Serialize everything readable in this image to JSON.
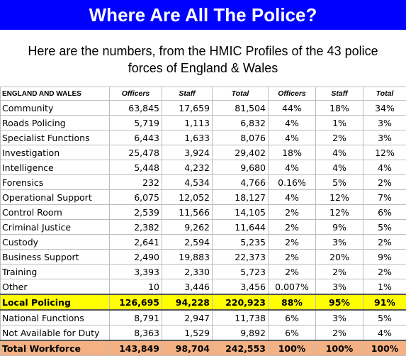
{
  "title": "Where Are All The Police?",
  "subtitle_line1": "Here are the numbers, from the HMIC Profiles of the 43 police",
  "subtitle_line2": "forces of England & Wales",
  "colors": {
    "banner": "#0000ff",
    "highlight": "#ffff00",
    "total": "#f4b183"
  },
  "table": {
    "headers": [
      "ENGLAND AND WALES",
      "Officers",
      "Staff",
      "Total",
      "Officers",
      "Staff",
      "Total"
    ],
    "rows": [
      [
        "Community",
        "63,845",
        "17,659",
        "81,504",
        "44%",
        "18%",
        "34%"
      ],
      [
        "Roads Policing",
        "5,719",
        "1,113",
        "6,832",
        "4%",
        "1%",
        "3%"
      ],
      [
        "Specialist Functions",
        "6,443",
        "1,633",
        "8,076",
        "4%",
        "2%",
        "3%"
      ],
      [
        "Investigation",
        "25,478",
        "3,924",
        "29,402",
        "18%",
        "4%",
        "12%"
      ],
      [
        "Intelligence",
        "5,448",
        "4,232",
        "9,680",
        "4%",
        "4%",
        "4%"
      ],
      [
        "Forensics",
        "232",
        "4,534",
        "4,766",
        "0.16%",
        "5%",
        "2%"
      ],
      [
        "Operational Support",
        "6,075",
        "12,052",
        "18,127",
        "4%",
        "12%",
        "7%"
      ],
      [
        "Control Room",
        "2,539",
        "11,566",
        "14,105",
        "2%",
        "12%",
        "6%"
      ],
      [
        "Criminal Justice",
        "2,382",
        "9,262",
        "11,644",
        "2%",
        "9%",
        "5%"
      ],
      [
        "Custody",
        "2,641",
        "2,594",
        "5,235",
        "2%",
        "3%",
        "2%"
      ],
      [
        "Business Support",
        "2,490",
        "19,883",
        "22,373",
        "2%",
        "20%",
        "9%"
      ],
      [
        "Training",
        "3,393",
        "2,330",
        "5,723",
        "2%",
        "2%",
        "2%"
      ],
      [
        "Other",
        "10",
        "3,446",
        "3,456",
        "0.007%",
        "3%",
        "1%"
      ]
    ],
    "local": [
      "Local Policing",
      "126,695",
      "94,228",
      "220,923",
      "88%",
      "95%",
      "91%"
    ],
    "extra_rows": [
      [
        "National Functions",
        "8,791",
        "2,947",
        "11,738",
        "6%",
        "3%",
        "5%"
      ],
      [
        "Not Available for Duty",
        "8,363",
        "1,529",
        "9,892",
        "6%",
        "2%",
        "4%"
      ]
    ],
    "total": [
      "Total Workforce",
      "143,849",
      "98,704",
      "242,553",
      "100%",
      "100%",
      "100%"
    ]
  }
}
